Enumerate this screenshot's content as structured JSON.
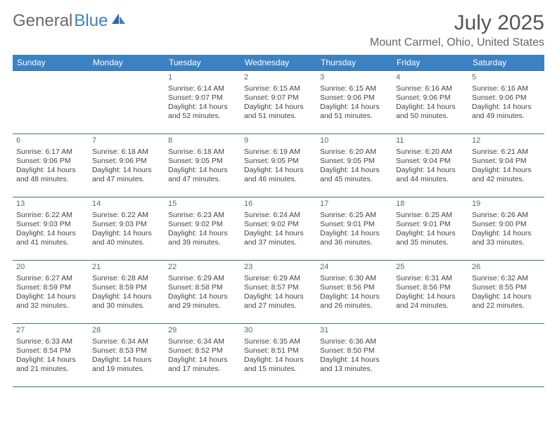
{
  "logo": {
    "text1": "General",
    "text2": "Blue",
    "color1": "#6a6a6a",
    "color2": "#3b82c4"
  },
  "title": "July 2025",
  "location": "Mount Carmel, Ohio, United States",
  "header_bg": "#3b82c4",
  "header_fg": "#ffffff",
  "border_color": "#3b6fa0",
  "days_of_week": [
    "Sunday",
    "Monday",
    "Tuesday",
    "Wednesday",
    "Thursday",
    "Friday",
    "Saturday"
  ],
  "weeks": [
    [
      null,
      null,
      {
        "n": "1",
        "sr": "Sunrise: 6:14 AM",
        "ss": "Sunset: 9:07 PM",
        "dl": "Daylight: 14 hours and 52 minutes."
      },
      {
        "n": "2",
        "sr": "Sunrise: 6:15 AM",
        "ss": "Sunset: 9:07 PM",
        "dl": "Daylight: 14 hours and 51 minutes."
      },
      {
        "n": "3",
        "sr": "Sunrise: 6:15 AM",
        "ss": "Sunset: 9:06 PM",
        "dl": "Daylight: 14 hours and 51 minutes."
      },
      {
        "n": "4",
        "sr": "Sunrise: 6:16 AM",
        "ss": "Sunset: 9:06 PM",
        "dl": "Daylight: 14 hours and 50 minutes."
      },
      {
        "n": "5",
        "sr": "Sunrise: 6:16 AM",
        "ss": "Sunset: 9:06 PM",
        "dl": "Daylight: 14 hours and 49 minutes."
      }
    ],
    [
      {
        "n": "6",
        "sr": "Sunrise: 6:17 AM",
        "ss": "Sunset: 9:06 PM",
        "dl": "Daylight: 14 hours and 48 minutes."
      },
      {
        "n": "7",
        "sr": "Sunrise: 6:18 AM",
        "ss": "Sunset: 9:06 PM",
        "dl": "Daylight: 14 hours and 47 minutes."
      },
      {
        "n": "8",
        "sr": "Sunrise: 6:18 AM",
        "ss": "Sunset: 9:05 PM",
        "dl": "Daylight: 14 hours and 47 minutes."
      },
      {
        "n": "9",
        "sr": "Sunrise: 6:19 AM",
        "ss": "Sunset: 9:05 PM",
        "dl": "Daylight: 14 hours and 46 minutes."
      },
      {
        "n": "10",
        "sr": "Sunrise: 6:20 AM",
        "ss": "Sunset: 9:05 PM",
        "dl": "Daylight: 14 hours and 45 minutes."
      },
      {
        "n": "11",
        "sr": "Sunrise: 6:20 AM",
        "ss": "Sunset: 9:04 PM",
        "dl": "Daylight: 14 hours and 44 minutes."
      },
      {
        "n": "12",
        "sr": "Sunrise: 6:21 AM",
        "ss": "Sunset: 9:04 PM",
        "dl": "Daylight: 14 hours and 42 minutes."
      }
    ],
    [
      {
        "n": "13",
        "sr": "Sunrise: 6:22 AM",
        "ss": "Sunset: 9:03 PM",
        "dl": "Daylight: 14 hours and 41 minutes."
      },
      {
        "n": "14",
        "sr": "Sunrise: 6:22 AM",
        "ss": "Sunset: 9:03 PM",
        "dl": "Daylight: 14 hours and 40 minutes."
      },
      {
        "n": "15",
        "sr": "Sunrise: 6:23 AM",
        "ss": "Sunset: 9:02 PM",
        "dl": "Daylight: 14 hours and 39 minutes."
      },
      {
        "n": "16",
        "sr": "Sunrise: 6:24 AM",
        "ss": "Sunset: 9:02 PM",
        "dl": "Daylight: 14 hours and 37 minutes."
      },
      {
        "n": "17",
        "sr": "Sunrise: 6:25 AM",
        "ss": "Sunset: 9:01 PM",
        "dl": "Daylight: 14 hours and 36 minutes."
      },
      {
        "n": "18",
        "sr": "Sunrise: 6:25 AM",
        "ss": "Sunset: 9:01 PM",
        "dl": "Daylight: 14 hours and 35 minutes."
      },
      {
        "n": "19",
        "sr": "Sunrise: 6:26 AM",
        "ss": "Sunset: 9:00 PM",
        "dl": "Daylight: 14 hours and 33 minutes."
      }
    ],
    [
      {
        "n": "20",
        "sr": "Sunrise: 6:27 AM",
        "ss": "Sunset: 8:59 PM",
        "dl": "Daylight: 14 hours and 32 minutes."
      },
      {
        "n": "21",
        "sr": "Sunrise: 6:28 AM",
        "ss": "Sunset: 8:59 PM",
        "dl": "Daylight: 14 hours and 30 minutes."
      },
      {
        "n": "22",
        "sr": "Sunrise: 6:29 AM",
        "ss": "Sunset: 8:58 PM",
        "dl": "Daylight: 14 hours and 29 minutes."
      },
      {
        "n": "23",
        "sr": "Sunrise: 6:29 AM",
        "ss": "Sunset: 8:57 PM",
        "dl": "Daylight: 14 hours and 27 minutes."
      },
      {
        "n": "24",
        "sr": "Sunrise: 6:30 AM",
        "ss": "Sunset: 8:56 PM",
        "dl": "Daylight: 14 hours and 26 minutes."
      },
      {
        "n": "25",
        "sr": "Sunrise: 6:31 AM",
        "ss": "Sunset: 8:56 PM",
        "dl": "Daylight: 14 hours and 24 minutes."
      },
      {
        "n": "26",
        "sr": "Sunrise: 6:32 AM",
        "ss": "Sunset: 8:55 PM",
        "dl": "Daylight: 14 hours and 22 minutes."
      }
    ],
    [
      {
        "n": "27",
        "sr": "Sunrise: 6:33 AM",
        "ss": "Sunset: 8:54 PM",
        "dl": "Daylight: 14 hours and 21 minutes."
      },
      {
        "n": "28",
        "sr": "Sunrise: 6:34 AM",
        "ss": "Sunset: 8:53 PM",
        "dl": "Daylight: 14 hours and 19 minutes."
      },
      {
        "n": "29",
        "sr": "Sunrise: 6:34 AM",
        "ss": "Sunset: 8:52 PM",
        "dl": "Daylight: 14 hours and 17 minutes."
      },
      {
        "n": "30",
        "sr": "Sunrise: 6:35 AM",
        "ss": "Sunset: 8:51 PM",
        "dl": "Daylight: 14 hours and 15 minutes."
      },
      {
        "n": "31",
        "sr": "Sunrise: 6:36 AM",
        "ss": "Sunset: 8:50 PM",
        "dl": "Daylight: 14 hours and 13 minutes."
      },
      null,
      null
    ]
  ]
}
